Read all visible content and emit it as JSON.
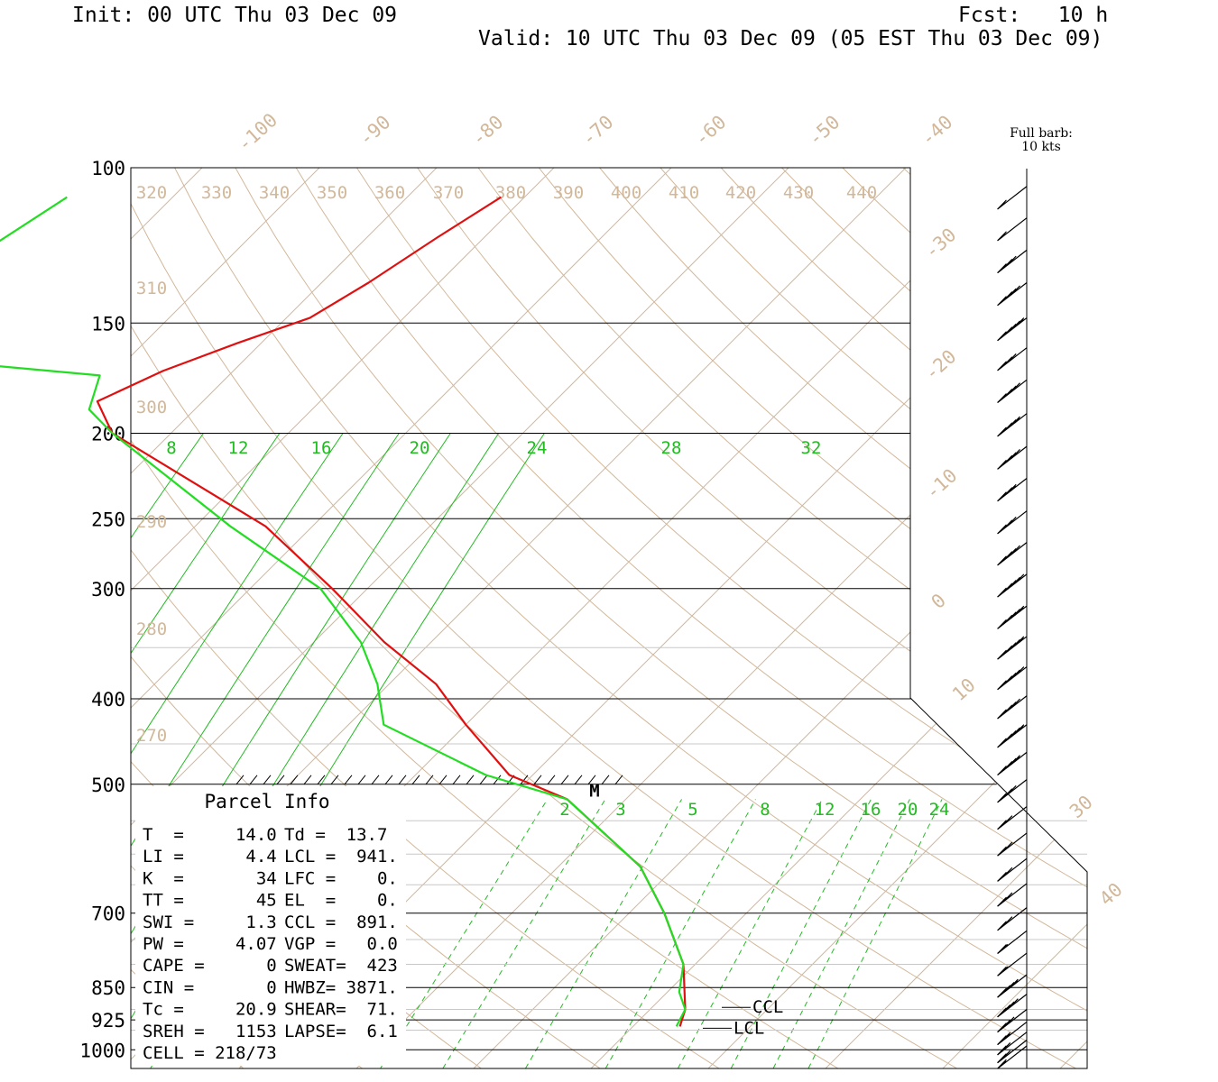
{
  "header": {
    "init": "Init: 00 UTC Thu 03 Dec 09",
    "fcst": "Fcst:   10 h",
    "valid": "Valid: 10 UTC Thu 03 Dec 09 (05 EST Thu 03 Dec 09)"
  },
  "colors": {
    "temperature": "#e01010",
    "dewpoint": "#22dd22",
    "isotherm": "#d2b89a",
    "mixing_ratio": "#22bb22",
    "frame": "#000000"
  },
  "chart_data": {
    "type": "line",
    "title": "",
    "pressure_levels": [
      "100",
      "150",
      "200",
      "250",
      "300",
      "400",
      "500",
      "700",
      "850",
      "925",
      "1000"
    ],
    "isotherm_labels": [
      "-100",
      "-90",
      "-80",
      "-70",
      "-60",
      "-50",
      "-40",
      "-30",
      "-20",
      "-10",
      "0",
      "10",
      "30",
      "40"
    ],
    "theta_labels": [
      "320",
      "330",
      "340",
      "350",
      "360",
      "370",
      "380",
      "390",
      "400",
      "410",
      "420",
      "430",
      "440",
      "310",
      "300",
      "290",
      "280",
      "270"
    ],
    "mixing_ratio_upper_labels": [
      "8",
      "12",
      "16",
      "20",
      "24",
      "28",
      "32"
    ],
    "mixing_ratio_lower_labels": [
      "2",
      "3",
      "5",
      "8",
      "12",
      "16",
      "20",
      "24"
    ],
    "wind_legend": {
      "line1": "Full barb:",
      "line2": "10 kts"
    },
    "series": [
      {
        "name": "",
        "color": "#e01010",
        "points": [
          [
            -72,
            108
          ],
          [
            -74,
            120
          ],
          [
            -76,
            135
          ],
          [
            -78,
            148
          ],
          [
            -82,
            158
          ],
          [
            -86,
            170
          ],
          [
            -89,
            184
          ],
          [
            -85,
            200
          ],
          [
            -64,
            255
          ],
          [
            -53,
            300
          ],
          [
            -44,
            345
          ],
          [
            -36,
            385
          ],
          [
            -30,
            428
          ],
          [
            -22,
            488
          ],
          [
            -15,
            520
          ],
          [
            -3,
            620
          ],
          [
            3,
            700
          ],
          [
            9,
            800
          ],
          [
            13,
            900
          ],
          [
            14,
            941
          ]
        ]
      },
      {
        "name": "",
        "color": "#22dd22",
        "points": [
          [
            -109,
            108
          ],
          [
            -112,
            128
          ],
          [
            -116,
            141
          ],
          [
            -124,
            158
          ],
          [
            -91,
            172
          ],
          [
            -89,
            188
          ],
          [
            -85,
            200
          ],
          [
            -67,
            255
          ],
          [
            -54,
            300
          ],
          [
            -46,
            345
          ],
          [
            -41,
            385
          ],
          [
            -37,
            428
          ],
          [
            -24,
            488
          ],
          [
            -15,
            520
          ],
          [
            -3,
            620
          ],
          [
            3,
            700
          ],
          [
            9,
            800
          ],
          [
            11,
            860
          ],
          [
            13,
            900
          ],
          [
            13.7,
            941
          ]
        ]
      }
    ],
    "markers": [
      {
        "label": "M",
        "pressure": 507
      },
      {
        "label": "CCL",
        "pressure": 891
      },
      {
        "label": "LCL",
        "pressure": 941
      }
    ],
    "wind_profile": [
      {
        "pressure": 105,
        "speed_kt": 50,
        "dir": 315
      },
      {
        "pressure": 114,
        "speed_kt": 50,
        "dir": 315
      },
      {
        "pressure": 124,
        "speed_kt": 70,
        "dir": 300
      },
      {
        "pressure": 135,
        "speed_kt": 80,
        "dir": 300
      },
      {
        "pressure": 148,
        "speed_kt": 95,
        "dir": 295
      },
      {
        "pressure": 160,
        "speed_kt": 70,
        "dir": 300
      },
      {
        "pressure": 174,
        "speed_kt": 80,
        "dir": 300
      },
      {
        "pressure": 190,
        "speed_kt": 85,
        "dir": 300
      },
      {
        "pressure": 207,
        "speed_kt": 80,
        "dir": 300
      },
      {
        "pressure": 225,
        "speed_kt": 75,
        "dir": 300
      },
      {
        "pressure": 245,
        "speed_kt": 70,
        "dir": 300
      },
      {
        "pressure": 266,
        "speed_kt": 80,
        "dir": 300
      },
      {
        "pressure": 289,
        "speed_kt": 90,
        "dir": 300
      },
      {
        "pressure": 314,
        "speed_kt": 95,
        "dir": 300
      },
      {
        "pressure": 340,
        "speed_kt": 95,
        "dir": 300
      },
      {
        "pressure": 368,
        "speed_kt": 90,
        "dir": 300
      },
      {
        "pressure": 397,
        "speed_kt": 80,
        "dir": 300
      },
      {
        "pressure": 428,
        "speed_kt": 95,
        "dir": 300
      },
      {
        "pressure": 460,
        "speed_kt": 85,
        "dir": 300
      },
      {
        "pressure": 494,
        "speed_kt": 70,
        "dir": 300
      },
      {
        "pressure": 530,
        "speed_kt": 60,
        "dir": 300
      },
      {
        "pressure": 568,
        "speed_kt": 60,
        "dir": 300
      },
      {
        "pressure": 607,
        "speed_kt": 60,
        "dir": 300
      },
      {
        "pressure": 648,
        "speed_kt": 60,
        "dir": 300
      },
      {
        "pressure": 690,
        "speed_kt": 60,
        "dir": 300
      },
      {
        "pressure": 733,
        "speed_kt": 55,
        "dir": 300
      },
      {
        "pressure": 777,
        "speed_kt": 55,
        "dir": 300
      },
      {
        "pressure": 822,
        "speed_kt": 45,
        "dir": 295
      },
      {
        "pressure": 865,
        "speed_kt": 40,
        "dir": 290
      },
      {
        "pressure": 900,
        "speed_kt": 30,
        "dir": 280
      },
      {
        "pressure": 930,
        "speed_kt": 25,
        "dir": 260
      },
      {
        "pressure": 955,
        "speed_kt": 20,
        "dir": 230
      },
      {
        "pressure": 975,
        "speed_kt": 20,
        "dir": 210
      },
      {
        "pressure": 990,
        "speed_kt": 15,
        "dir": 200
      }
    ]
  },
  "parcel_info": {
    "title": "Parcel Info",
    "rows": [
      [
        "T  =     14.0",
        "Td =  13.7"
      ],
      [
        "LI =      4.4",
        "LCL =  941."
      ],
      [
        "K  =       34",
        "LFC =    0."
      ],
      [
        "TT =       45",
        "EL  =    0."
      ],
      [
        "SWI =     1.3",
        "CCL =  891."
      ],
      [
        "PW =     4.07",
        "VGP =   0.0"
      ],
      [
        "CAPE =      0",
        "SWEAT=  423"
      ],
      [
        "CIN =       0",
        "HWBZ= 3871."
      ],
      [
        "Tc =     20.9",
        "SHEAR=  71."
      ],
      [
        "SREH =   1153",
        "LAPSE=  6.1"
      ],
      [
        "CELL = 218/73",
        ""
      ]
    ]
  }
}
